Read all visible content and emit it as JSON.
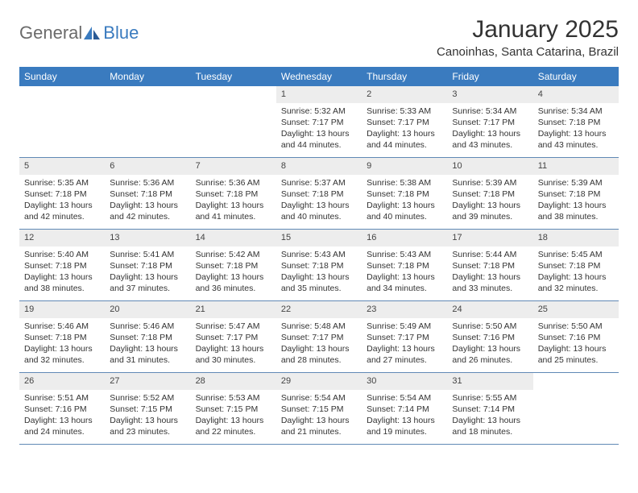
{
  "logo": {
    "text1": "General",
    "text2": "Blue"
  },
  "title": "January 2025",
  "location": "Canoinhas, Santa Catarina, Brazil",
  "weekdays": [
    "Sunday",
    "Monday",
    "Tuesday",
    "Wednesday",
    "Thursday",
    "Friday",
    "Saturday"
  ],
  "colors": {
    "header_bg": "#3a7bbf",
    "header_text": "#ffffff",
    "daynum_bg": "#ededed",
    "row_border": "#6089b5",
    "logo_gray": "#6b6b6b",
    "logo_blue": "#3a7bbf"
  },
  "weeks": [
    [
      null,
      null,
      null,
      {
        "n": "1",
        "sr": "5:32 AM",
        "ss": "7:17 PM",
        "dl": "13 hours and 44 minutes."
      },
      {
        "n": "2",
        "sr": "5:33 AM",
        "ss": "7:17 PM",
        "dl": "13 hours and 44 minutes."
      },
      {
        "n": "3",
        "sr": "5:34 AM",
        "ss": "7:17 PM",
        "dl": "13 hours and 43 minutes."
      },
      {
        "n": "4",
        "sr": "5:34 AM",
        "ss": "7:18 PM",
        "dl": "13 hours and 43 minutes."
      }
    ],
    [
      {
        "n": "5",
        "sr": "5:35 AM",
        "ss": "7:18 PM",
        "dl": "13 hours and 42 minutes."
      },
      {
        "n": "6",
        "sr": "5:36 AM",
        "ss": "7:18 PM",
        "dl": "13 hours and 42 minutes."
      },
      {
        "n": "7",
        "sr": "5:36 AM",
        "ss": "7:18 PM",
        "dl": "13 hours and 41 minutes."
      },
      {
        "n": "8",
        "sr": "5:37 AM",
        "ss": "7:18 PM",
        "dl": "13 hours and 40 minutes."
      },
      {
        "n": "9",
        "sr": "5:38 AM",
        "ss": "7:18 PM",
        "dl": "13 hours and 40 minutes."
      },
      {
        "n": "10",
        "sr": "5:39 AM",
        "ss": "7:18 PM",
        "dl": "13 hours and 39 minutes."
      },
      {
        "n": "11",
        "sr": "5:39 AM",
        "ss": "7:18 PM",
        "dl": "13 hours and 38 minutes."
      }
    ],
    [
      {
        "n": "12",
        "sr": "5:40 AM",
        "ss": "7:18 PM",
        "dl": "13 hours and 38 minutes."
      },
      {
        "n": "13",
        "sr": "5:41 AM",
        "ss": "7:18 PM",
        "dl": "13 hours and 37 minutes."
      },
      {
        "n": "14",
        "sr": "5:42 AM",
        "ss": "7:18 PM",
        "dl": "13 hours and 36 minutes."
      },
      {
        "n": "15",
        "sr": "5:43 AM",
        "ss": "7:18 PM",
        "dl": "13 hours and 35 minutes."
      },
      {
        "n": "16",
        "sr": "5:43 AM",
        "ss": "7:18 PM",
        "dl": "13 hours and 34 minutes."
      },
      {
        "n": "17",
        "sr": "5:44 AM",
        "ss": "7:18 PM",
        "dl": "13 hours and 33 minutes."
      },
      {
        "n": "18",
        "sr": "5:45 AM",
        "ss": "7:18 PM",
        "dl": "13 hours and 32 minutes."
      }
    ],
    [
      {
        "n": "19",
        "sr": "5:46 AM",
        "ss": "7:18 PM",
        "dl": "13 hours and 32 minutes."
      },
      {
        "n": "20",
        "sr": "5:46 AM",
        "ss": "7:18 PM",
        "dl": "13 hours and 31 minutes."
      },
      {
        "n": "21",
        "sr": "5:47 AM",
        "ss": "7:17 PM",
        "dl": "13 hours and 30 minutes."
      },
      {
        "n": "22",
        "sr": "5:48 AM",
        "ss": "7:17 PM",
        "dl": "13 hours and 28 minutes."
      },
      {
        "n": "23",
        "sr": "5:49 AM",
        "ss": "7:17 PM",
        "dl": "13 hours and 27 minutes."
      },
      {
        "n": "24",
        "sr": "5:50 AM",
        "ss": "7:16 PM",
        "dl": "13 hours and 26 minutes."
      },
      {
        "n": "25",
        "sr": "5:50 AM",
        "ss": "7:16 PM",
        "dl": "13 hours and 25 minutes."
      }
    ],
    [
      {
        "n": "26",
        "sr": "5:51 AM",
        "ss": "7:16 PM",
        "dl": "13 hours and 24 minutes."
      },
      {
        "n": "27",
        "sr": "5:52 AM",
        "ss": "7:15 PM",
        "dl": "13 hours and 23 minutes."
      },
      {
        "n": "28",
        "sr": "5:53 AM",
        "ss": "7:15 PM",
        "dl": "13 hours and 22 minutes."
      },
      {
        "n": "29",
        "sr": "5:54 AM",
        "ss": "7:15 PM",
        "dl": "13 hours and 21 minutes."
      },
      {
        "n": "30",
        "sr": "5:54 AM",
        "ss": "7:14 PM",
        "dl": "13 hours and 19 minutes."
      },
      {
        "n": "31",
        "sr": "5:55 AM",
        "ss": "7:14 PM",
        "dl": "13 hours and 18 minutes."
      },
      null
    ]
  ],
  "labels": {
    "sunrise": "Sunrise: ",
    "sunset": "Sunset: ",
    "daylight": "Daylight: "
  }
}
